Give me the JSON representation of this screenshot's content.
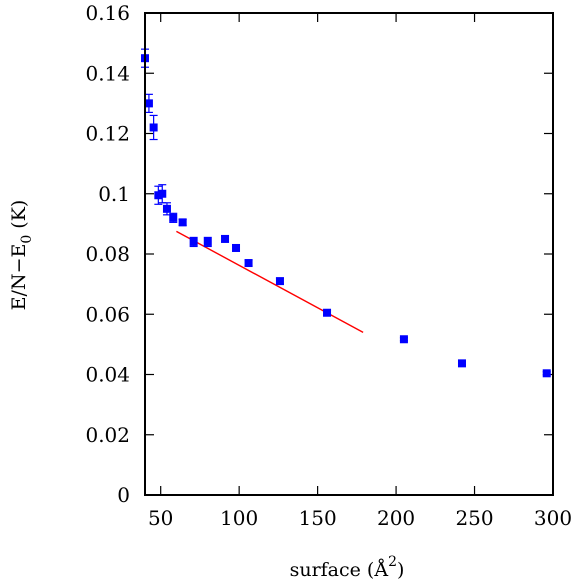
{
  "chart_data": {
    "type": "scatter",
    "xlabel": "surface (Å",
    "xlabel_sup": "2",
    "xlabel_close": ")",
    "ylabel": "E/N−E",
    "ylabel_sub": "0",
    "ylabel_units": " (K)",
    "xlim": [
      40,
      300
    ],
    "ylim": [
      0,
      0.16
    ],
    "xticks": [
      50,
      100,
      150,
      200,
      250,
      300
    ],
    "yticks": [
      0,
      0.02,
      0.04,
      0.06,
      0.08,
      0.1,
      0.12,
      0.14,
      0.16
    ],
    "ytick_labels": [
      "0",
      "0.02",
      "0.04",
      "0.06",
      "0.08",
      "0.1",
      "0.12",
      "0.14",
      "0.16"
    ],
    "grid": false,
    "marker_color": "#0000ff",
    "fit_color": "#ff0000",
    "series": [
      {
        "points": [
          {
            "x": 40.0,
            "y": 0.145,
            "err": 0.003
          },
          {
            "x": 42.5,
            "y": 0.13,
            "err": 0.003
          },
          {
            "x": 45.5,
            "y": 0.122,
            "err": 0.004
          },
          {
            "x": 48.5,
            "y": 0.0995,
            "err": 0.003
          },
          {
            "x": 51.0,
            "y": 0.1,
            "err": 0.003
          },
          {
            "x": 54.0,
            "y": 0.095,
            "err": 0.002
          },
          {
            "x": 58.0,
            "y": 0.092,
            "err": 0.0015
          },
          {
            "x": 64.0,
            "y": 0.0905,
            "err": 0.001
          },
          {
            "x": 71.0,
            "y": 0.084,
            "err": 0.0015
          },
          {
            "x": 80.0,
            "y": 0.084,
            "err": 0.0015
          },
          {
            "x": 91.0,
            "y": 0.085,
            "err": 0.001
          },
          {
            "x": 98.0,
            "y": 0.082,
            "err": 0.001
          },
          {
            "x": 106.0,
            "y": 0.077,
            "err": 0.001
          },
          {
            "x": 126.0,
            "y": 0.071,
            "err": 0.001
          },
          {
            "x": 156.0,
            "y": 0.0605,
            "err": 0.0008
          },
          {
            "x": 205.0,
            "y": 0.0517,
            "err": 0.0005
          },
          {
            "x": 242.0,
            "y": 0.0437,
            "err": 0.0005
          },
          {
            "x": 296.0,
            "y": 0.0404,
            "err": 0.0005
          }
        ]
      }
    ],
    "fit_line": {
      "x": [
        60,
        179
      ],
      "y": [
        0.0875,
        0.054
      ]
    }
  }
}
